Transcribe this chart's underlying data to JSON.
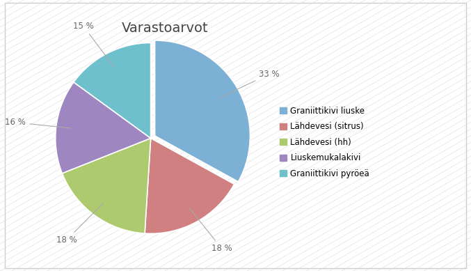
{
  "title": "Varastoarvot",
  "labels": [
    "Graniittikivi liuske",
    "Lähdevesi (sitrus)",
    "Lähdevesi (hh)",
    "Liuskemukalakivi",
    "Graniittikivi pyröeä"
  ],
  "values": [
    33,
    18,
    18,
    16,
    15
  ],
  "colors": [
    "#7DB0D5",
    "#D08080",
    "#AECA6E",
    "#9E86C0",
    "#6DC0CC"
  ],
  "pct_labels": [
    "33 %",
    "18 %",
    "18 %",
    "16 %",
    "15 %"
  ],
  "explode": [
    0.05,
    0.0,
    0.0,
    0.0,
    0.0
  ],
  "background_color": "#F0F0F0",
  "hatch_color": "#E4E4E4",
  "title_fontsize": 14,
  "legend_fontsize": 8.5,
  "pct_fontsize": 8.5,
  "start_angle": 90
}
